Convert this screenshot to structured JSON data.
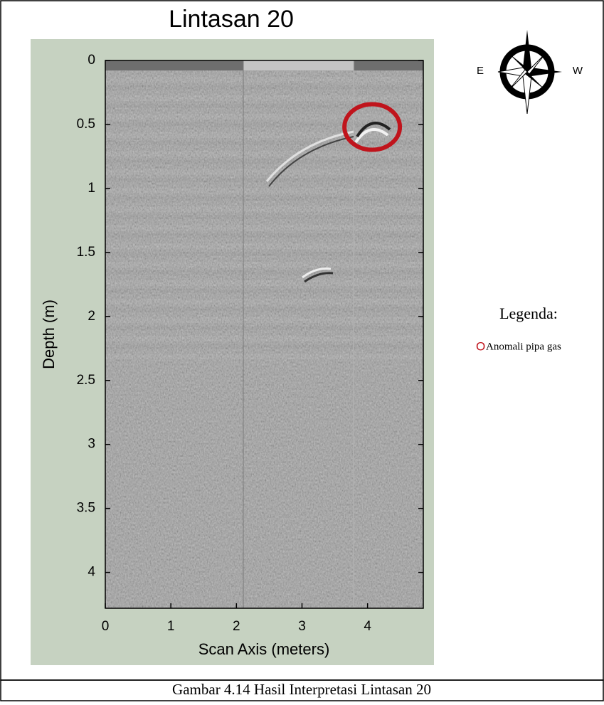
{
  "chart_data": {
    "type": "radargram",
    "title": "Lintasan 20",
    "xlabel": "Scan Axis (meters)",
    "ylabel": "Depth (m)",
    "xlim": [
      0,
      4.85
    ],
    "ylim": [
      0,
      4.28
    ],
    "y_inverted": true,
    "xticks": [
      0,
      1,
      2,
      3,
      4
    ],
    "yticks": [
      0,
      0.5,
      1,
      1.5,
      2,
      2.5,
      3,
      3.5,
      4
    ],
    "annotation": {
      "x": 4.07,
      "y": 0.52,
      "color": "#c0141c"
    },
    "legend": {
      "title": "Legenda:",
      "marker": "O",
      "label": "Anomali pipa gas"
    }
  },
  "compass": {
    "east": "E",
    "west": "W"
  },
  "caption": "Gambar 4.14 Hasil Interpretasi Lintasan 20"
}
